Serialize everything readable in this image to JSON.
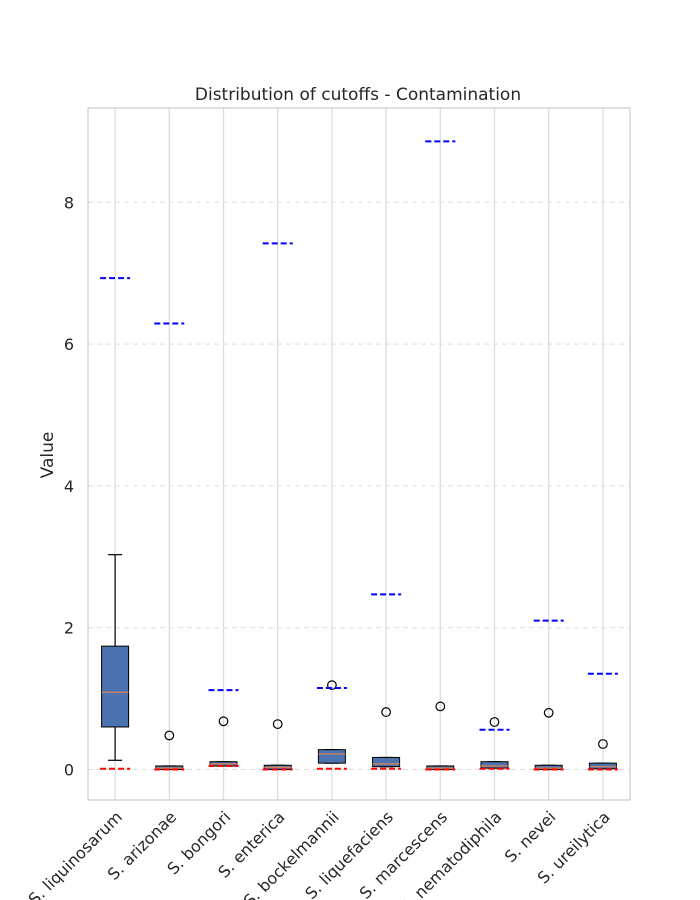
{
  "chart_data": {
    "type": "box",
    "title": "Distribution of cutoffs - Contamination",
    "ylabel": "Value",
    "xlabel": "",
    "ylim": [
      -0.43,
      9.33
    ],
    "yticks": [
      0,
      2,
      4,
      6,
      8
    ],
    "grid": true,
    "categories": [
      "S. liquinosarum",
      "S. arizonae",
      "S. bongori",
      "S. enterica",
      "S. bockelmannii",
      "S. liquefaciens",
      "S. marcescens",
      "S. nematodiphila",
      "S. nevei",
      "S. ureilytica"
    ],
    "boxes": [
      {
        "q1": 0.6,
        "median": 1.09,
        "q3": 1.74,
        "whisker_low": 0.13,
        "whisker_high": 3.03,
        "outliers": []
      },
      {
        "q1": 0.0,
        "median": 0.02,
        "q3": 0.05,
        "whisker_low": 0.0,
        "whisker_high": 0.05,
        "outliers": [
          0.48
        ]
      },
      {
        "q1": 0.05,
        "median": 0.08,
        "q3": 0.11,
        "whisker_low": 0.05,
        "whisker_high": 0.11,
        "outliers": [
          0.68
        ]
      },
      {
        "q1": 0.0,
        "median": 0.03,
        "q3": 0.06,
        "whisker_low": 0.0,
        "whisker_high": 0.06,
        "outliers": [
          0.64
        ]
      },
      {
        "q1": 0.09,
        "median": 0.22,
        "q3": 0.28,
        "whisker_low": 0.09,
        "whisker_high": 0.28,
        "outliers": [
          1.19
        ]
      },
      {
        "q1": 0.04,
        "median": 0.08,
        "q3": 0.17,
        "whisker_low": 0.04,
        "whisker_high": 0.17,
        "outliers": [
          0.81
        ]
      },
      {
        "q1": 0.0,
        "median": 0.02,
        "q3": 0.05,
        "whisker_low": 0.0,
        "whisker_high": 0.05,
        "outliers": [
          0.89
        ]
      },
      {
        "q1": 0.02,
        "median": 0.05,
        "q3": 0.11,
        "whisker_low": 0.02,
        "whisker_high": 0.11,
        "outliers": [
          0.67
        ]
      },
      {
        "q1": 0.0,
        "median": 0.02,
        "q3": 0.06,
        "whisker_low": 0.0,
        "whisker_high": 0.06,
        "outliers": [
          0.8
        ]
      },
      {
        "q1": 0.01,
        "median": 0.04,
        "q3": 0.09,
        "whisker_low": 0.01,
        "whisker_high": 0.09,
        "outliers": [
          0.36
        ]
      }
    ],
    "blue_cutoffs": [
      6.93,
      6.29,
      1.12,
      7.42,
      1.15,
      2.47,
      8.86,
      0.56,
      2.1,
      1.35
    ],
    "red_cutoffs": [
      0.01,
      0.0,
      0.05,
      0.0,
      0.01,
      0.01,
      0.0,
      0.01,
      0.0,
      0.0
    ],
    "colors": {
      "box_fill": "#4c72b0",
      "median": "#dd8452",
      "blue_line": "#0000ff",
      "red_line": "#ff0000",
      "grid": "#dddddd",
      "axis": "#cccccc"
    }
  }
}
